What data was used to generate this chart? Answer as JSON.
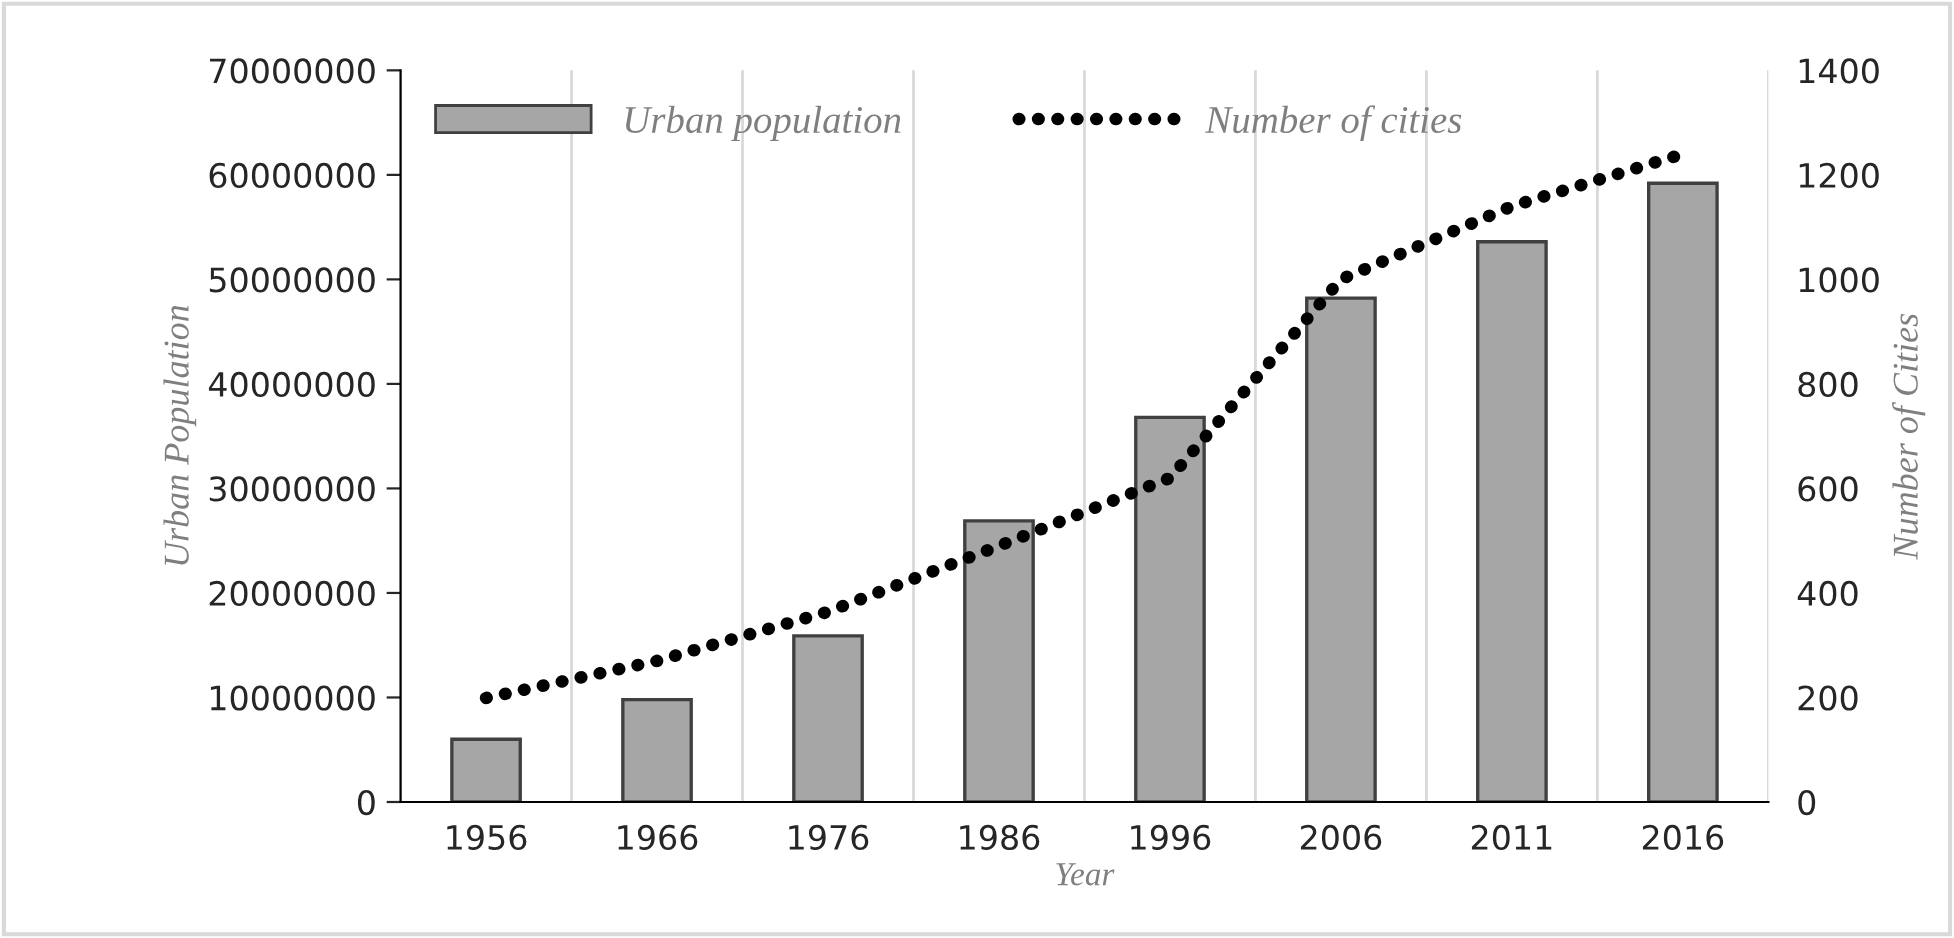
{
  "chart_data": {
    "type": "bar",
    "xlabel": "Year",
    "ylabel": "Urban Population",
    "y2label": "Number of Cities",
    "categories": [
      "1956",
      "1966",
      "1976",
      "1986",
      "1996",
      "2006",
      "2011",
      "2016"
    ],
    "series": [
      {
        "name": "Urban population",
        "color": "#a6a6a6",
        "values": [
          6000000,
          9800000,
          15900000,
          26900000,
          36800000,
          48200000,
          53600000,
          59200000
        ]
      },
      {
        "name": "Number of cities",
        "type": "line",
        "axis": "y2",
        "color": "#000000",
        "line_style": "dotted",
        "values": [
          199,
          270,
          364,
          490,
          620,
          1000,
          1140,
          1240
        ]
      }
    ],
    "ylim": [
      0,
      70000000
    ],
    "yticks": [
      0,
      10000000,
      20000000,
      30000000,
      40000000,
      50000000,
      60000000,
      70000000
    ],
    "y2lim": [
      0,
      1400
    ],
    "y2ticks": [
      0,
      200,
      400,
      600,
      800,
      1000,
      1200,
      1400
    ],
    "grid": "x",
    "legend": "top left"
  }
}
